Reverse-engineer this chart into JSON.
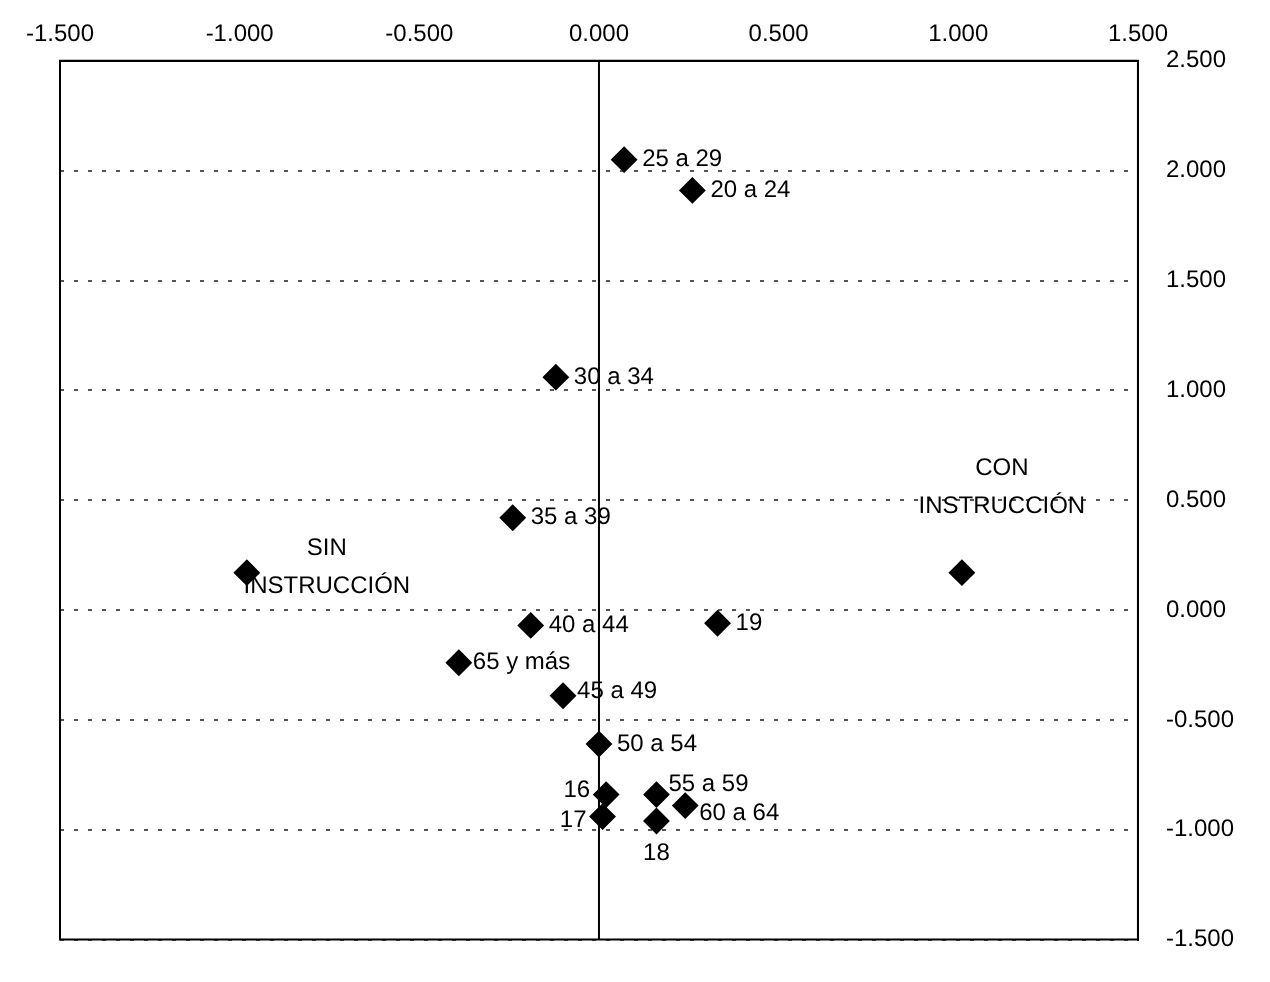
{
  "chart_data": {
    "type": "scatter",
    "color": "#000000",
    "marker": "diamond",
    "legend": false,
    "grid": "y",
    "x": [
      0.07,
      0.26,
      -0.12,
      -0.24,
      -0.98,
      1.01,
      -0.19,
      0.33,
      -0.39,
      -0.1,
      0.0,
      0.02,
      0.01,
      0.16,
      0.16,
      0.24
    ],
    "values": [
      2.05,
      1.91,
      1.06,
      0.42,
      0.17,
      0.17,
      -0.07,
      -0.06,
      -0.24,
      -0.39,
      -0.61,
      -0.84,
      -0.94,
      -0.84,
      -0.96,
      -0.89
    ],
    "annotations": [
      {
        "text": "25 a 29",
        "x": 0.07,
        "y": 2.05
      },
      {
        "text": "20 a 24",
        "x": 0.26,
        "y": 1.91
      },
      {
        "text": "30 a 34",
        "x": -0.12,
        "y": 1.06
      },
      {
        "text": "35 a 39",
        "x": -0.24,
        "y": 0.42
      },
      {
        "text": "SIN INSTRUCCIÓN",
        "x": -0.98,
        "y": 0.17
      },
      {
        "text": "CON INSTRUCCIÓN",
        "x": 1.01,
        "y": 0.17
      },
      {
        "text": "40 a 44",
        "x": -0.19,
        "y": -0.07
      },
      {
        "text": "19",
        "x": 0.33,
        "y": -0.06
      },
      {
        "text": "65 y más",
        "x": -0.39,
        "y": -0.24
      },
      {
        "text": "45 a 49",
        "x": -0.1,
        "y": -0.39
      },
      {
        "text": "50 a 54",
        "x": 0.0,
        "y": -0.61
      },
      {
        "text": "16",
        "x": 0.02,
        "y": -0.84
      },
      {
        "text": "17",
        "x": 0.01,
        "y": -0.94
      },
      {
        "text": "55 a 59",
        "x": 0.16,
        "y": -0.84
      },
      {
        "text": "18",
        "x": 0.16,
        "y": -0.96
      },
      {
        "text": "60 a 64",
        "x": 0.24,
        "y": -0.89
      }
    ],
    "ref_lines": [
      {
        "axis": "x",
        "value": 0,
        "color": "#000000",
        "line_style": "solid"
      }
    ],
    "xlim": [
      -1.5,
      1.5
    ],
    "xticks": [
      {
        "value": -1.5,
        "label": "-1.500"
      },
      {
        "value": -1,
        "label": "-1.000"
      },
      {
        "value": -0.5,
        "label": "-0.500"
      },
      {
        "value": 0,
        "label": "0.000"
      },
      {
        "value": 0.5,
        "label": "0.500"
      },
      {
        "value": 1,
        "label": "1.000"
      },
      {
        "value": 1.5,
        "label": "1.500"
      }
    ],
    "ylim": [
      -1.5,
      2.5
    ],
    "yticks": [
      {
        "value": -1.5,
        "label": "-1.500"
      },
      {
        "value": -1,
        "label": "-1.000"
      },
      {
        "value": -0.5,
        "label": "-0.500"
      },
      {
        "value": 0,
        "label": "0.000"
      },
      {
        "value": 0.5,
        "label": "0.500"
      },
      {
        "value": 1,
        "label": "1.000"
      },
      {
        "value": 1.5,
        "label": "1.500"
      },
      {
        "value": 2,
        "label": "2.000"
      },
      {
        "value": 2.5,
        "label": "2.500"
      }
    ]
  }
}
